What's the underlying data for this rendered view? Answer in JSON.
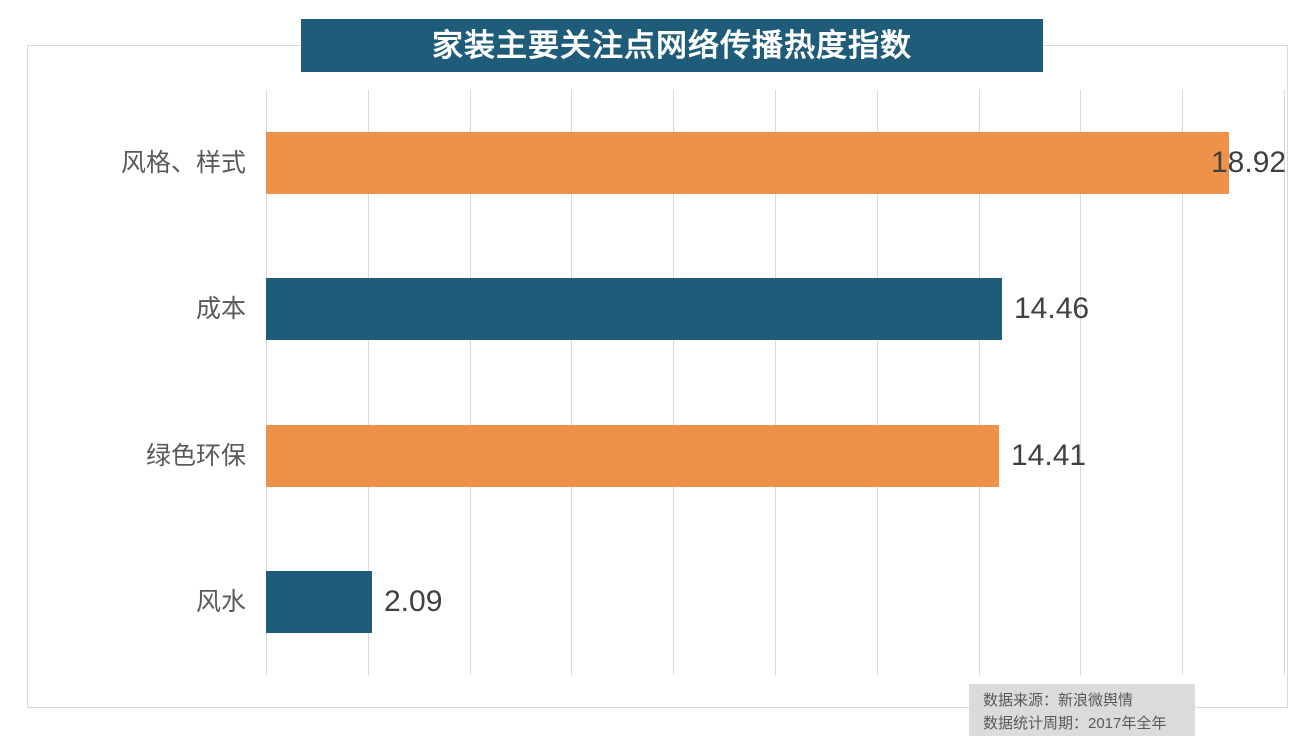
{
  "chart_data": {
    "type": "bar",
    "orientation": "horizontal",
    "title": "家装主要关注点网络传播热度指数",
    "categories": [
      "风格、样式",
      "成本",
      "绿色环保",
      "风水"
    ],
    "values": [
      18.92,
      14.46,
      14.41,
      2.09
    ],
    "value_labels": [
      "18.92",
      "14.46",
      "14.41",
      "2.09"
    ],
    "bar_colors": [
      "#EF9249",
      "#1F5C7A",
      "#EF9249",
      "#1F5C7A"
    ],
    "xlim": [
      0,
      20
    ],
    "grid_step": 2,
    "grid": "vertical-only",
    "legend": "none",
    "value_label_position": "outside-end"
  },
  "title_banner": {
    "text": "家装主要关注点网络传播热度指数",
    "background": "#1F5C7A",
    "text_color": "#FFFFFF"
  },
  "source_note": {
    "line1": "数据来源：新浪微舆情",
    "line2": "数据统计周期：2017年全年",
    "background": "#DBDBDB",
    "text_color": "#595959"
  },
  "colors": {
    "orange_bar": "#EF9249",
    "teal_bar": "#1F5C7A",
    "gridline": "#D9D9D9",
    "frame_border": "#D9D9D9",
    "category_text": "#595959",
    "value_text": "#404040"
  }
}
